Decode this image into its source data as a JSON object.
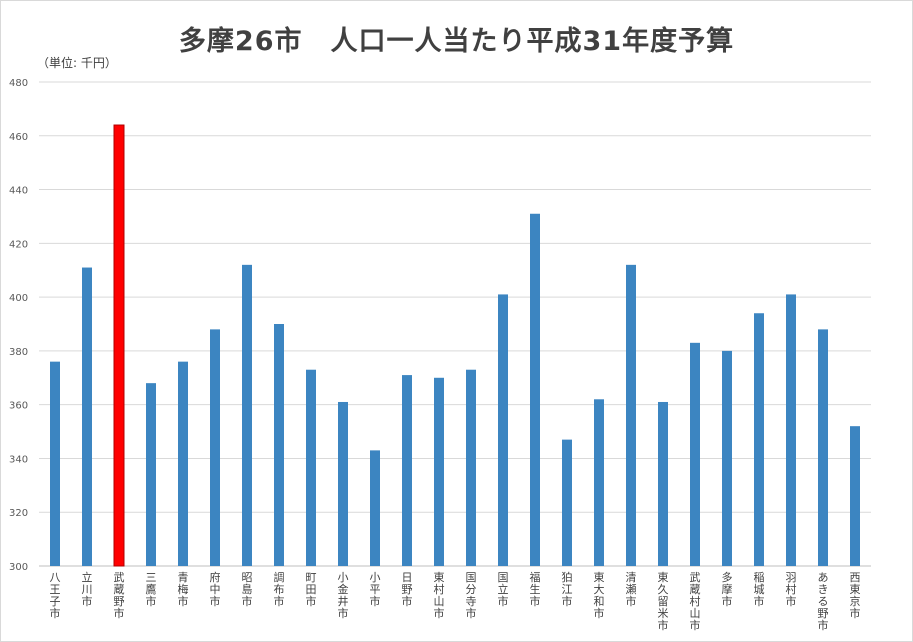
{
  "chart_data": {
    "type": "bar",
    "title": "多摩26市　人口一人当たり平成31年度予算",
    "unit_note": "（単位: 千円）",
    "xlabel": "",
    "ylabel": "",
    "ylim": [
      300,
      480
    ],
    "yticks": [
      300,
      320,
      340,
      360,
      380,
      400,
      420,
      440,
      460,
      480
    ],
    "grid": true,
    "colors": {
      "default": "#3c85c1",
      "highlight": "#ff0000",
      "highlight_edge": "#b00000",
      "grid": "#d9d9d9"
    },
    "categories": [
      "八王子市",
      "立川市",
      "武蔵野市",
      "三鷹市",
      "青梅市",
      "府中市",
      "昭島市",
      "調布市",
      "町田市",
      "小金井市",
      "小平市",
      "日野市",
      "東村山市",
      "国分寺市",
      "国立市",
      "福生市",
      "狛江市",
      "東大和市",
      "清瀬市",
      "東久留米市",
      "武蔵村山市",
      "多摩市",
      "稲城市",
      "羽村市",
      "あきる野市",
      "西東京市"
    ],
    "values": [
      376,
      411,
      464,
      368,
      376,
      388,
      412,
      390,
      373,
      361,
      343,
      371,
      370,
      373,
      401,
      431,
      347,
      362,
      412,
      361,
      383,
      380,
      394,
      401,
      388,
      352
    ],
    "highlight_index": 2
  }
}
